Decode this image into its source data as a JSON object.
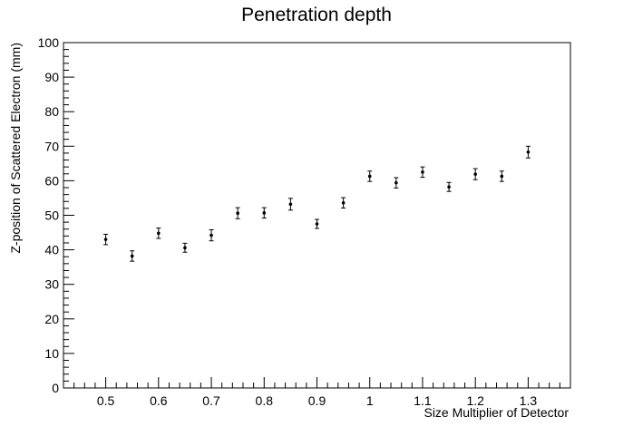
{
  "chart_data": {
    "type": "scatter",
    "title": "Penetration depth",
    "xlabel": "Size Multiplier of Detector",
    "ylabel": "Z-position of Scattered Electron (mm)",
    "xlim": [
      0.42,
      1.38
    ],
    "ylim": [
      0,
      100
    ],
    "x_ticks": [
      0.5,
      0.6,
      0.7,
      0.8,
      0.9,
      1,
      1.1,
      1.2,
      1.3
    ],
    "x_tick_labels": [
      "0.5",
      "0.6",
      "0.7",
      "0.8",
      "0.9",
      "1",
      "1.1",
      "1.2",
      "1.3"
    ],
    "y_ticks": [
      0,
      10,
      20,
      30,
      40,
      50,
      60,
      70,
      80,
      90,
      100
    ],
    "y_tick_labels": [
      "0",
      "10",
      "20",
      "30",
      "40",
      "50",
      "60",
      "70",
      "80",
      "90",
      "100"
    ],
    "grid": false,
    "legend": "none",
    "marker_color": "#000000",
    "series": [
      {
        "x": [
          0.5,
          0.55,
          0.6,
          0.65,
          0.7,
          0.75,
          0.8,
          0.85,
          0.9,
          0.95,
          1.0,
          1.05,
          1.1,
          1.15,
          1.2,
          1.25,
          1.3
        ],
        "y": [
          43.0,
          38.2,
          44.8,
          40.6,
          44.2,
          50.6,
          50.7,
          53.2,
          47.5,
          53.6,
          61.3,
          59.4,
          62.5,
          58.2,
          61.9,
          61.3,
          68.3
        ],
        "err": [
          1.5,
          1.5,
          1.5,
          1.3,
          1.6,
          1.6,
          1.5,
          1.7,
          1.3,
          1.5,
          1.5,
          1.5,
          1.5,
          1.3,
          1.6,
          1.5,
          1.7
        ]
      }
    ]
  }
}
